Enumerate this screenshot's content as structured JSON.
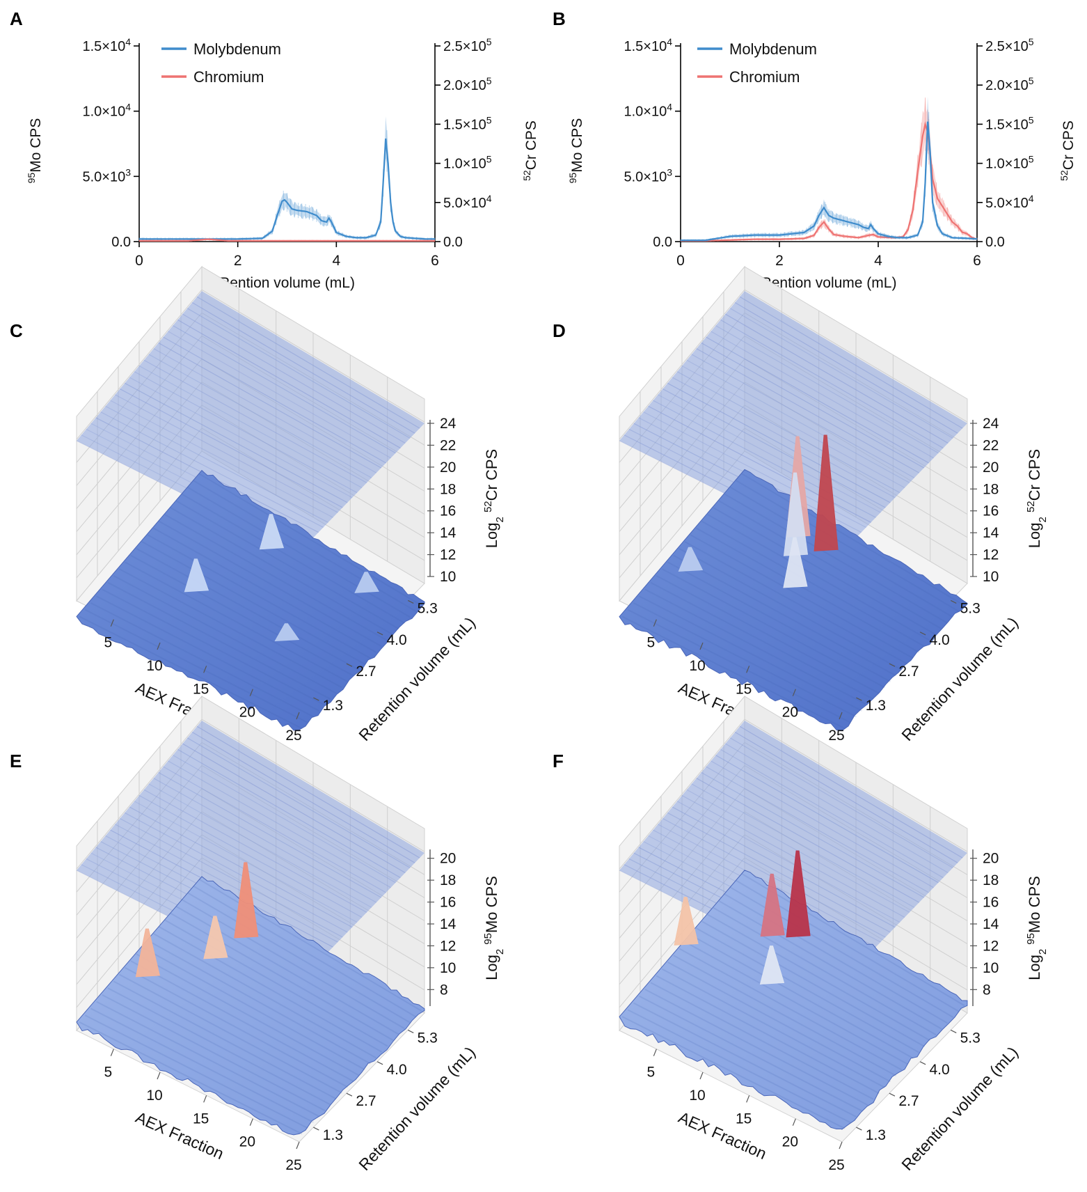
{
  "chart_data": [
    {
      "panel": "A",
      "type": "line",
      "xlabel": "Rention volume (mL)",
      "ylabel_left": {
        "sup": "95",
        "text": "Mo CPS"
      },
      "ylabel_right": {
        "sup": "52",
        "text": "Cr CPS"
      },
      "xlim": [
        0,
        6
      ],
      "ylim_left": [
        0,
        15000
      ],
      "ylim_right": [
        0,
        250000
      ],
      "x_ticks": [
        "0",
        "2",
        "4",
        "6"
      ],
      "left_ticks": [
        {
          "value": 0,
          "base": "0.0",
          "exp": ""
        },
        {
          "value": 5000,
          "base": "5.0×10",
          "exp": "3"
        },
        {
          "value": 10000,
          "base": "1.0×10",
          "exp": "4"
        },
        {
          "value": 15000,
          "base": "1.5×10",
          "exp": "4"
        }
      ],
      "right_ticks": [
        {
          "value": 0,
          "base": "0.0",
          "exp": ""
        },
        {
          "value": 50000,
          "base": "5.0×10",
          "exp": "4"
        },
        {
          "value": 100000,
          "base": "1.0×10",
          "exp": "5"
        },
        {
          "value": 150000,
          "base": "1.5×10",
          "exp": "5"
        },
        {
          "value": 200000,
          "base": "2.0×10",
          "exp": "5"
        },
        {
          "value": 250000,
          "base": "2.5×10",
          "exp": "5"
        }
      ],
      "legend": [
        {
          "name": "Molybdenum",
          "color": "#3f8ccc"
        },
        {
          "name": "Chromium",
          "color": "#ee7372"
        }
      ],
      "series": [
        {
          "name": "Molybdenum",
          "axis": "left",
          "color": "#3f8ccc",
          "x": [
            0,
            0.5,
            1,
            1.5,
            2,
            2.5,
            2.7,
            2.8,
            2.9,
            2.95,
            3.0,
            3.1,
            3.2,
            3.4,
            3.6,
            3.7,
            3.8,
            3.85,
            3.9,
            4.0,
            4.2,
            4.4,
            4.6,
            4.8,
            4.9,
            4.95,
            5.0,
            5.05,
            5.1,
            5.15,
            5.2,
            5.3,
            5.4,
            5.6,
            5.8,
            6.0
          ],
          "y": [
            200,
            200,
            200,
            200,
            200,
            250,
            800,
            2000,
            3100,
            3200,
            3000,
            2500,
            2400,
            2300,
            2000,
            1600,
            1500,
            1800,
            1500,
            700,
            400,
            300,
            300,
            500,
            1500,
            4500,
            7900,
            6000,
            3000,
            1500,
            800,
            400,
            300,
            250,
            200,
            200
          ]
        },
        {
          "name": "Chromium",
          "axis": "right",
          "color": "#ee7372",
          "x": [
            0,
            1.0,
            1.3,
            1.4,
            1.5,
            1.8,
            2.5,
            3.0,
            4.0,
            5.0,
            6.0
          ],
          "y": [
            1000,
            1000,
            2500,
            3000,
            2500,
            1000,
            1000,
            1000,
            1000,
            1000,
            1000
          ]
        }
      ]
    },
    {
      "panel": "B",
      "type": "line",
      "xlabel": "Rention volume (mL)",
      "ylabel_left": {
        "sup": "95",
        "text": "Mo CPS"
      },
      "ylabel_right": {
        "sup": "52",
        "text": "Cr CPS"
      },
      "xlim": [
        0,
        6
      ],
      "ylim_left": [
        0,
        15000
      ],
      "ylim_right": [
        0,
        250000
      ],
      "x_ticks": [
        "0",
        "2",
        "4",
        "6"
      ],
      "left_ticks": [
        {
          "value": 0,
          "base": "0.0",
          "exp": ""
        },
        {
          "value": 5000,
          "base": "5.0×10",
          "exp": "3"
        },
        {
          "value": 10000,
          "base": "1.0×10",
          "exp": "4"
        },
        {
          "value": 15000,
          "base": "1.5×10",
          "exp": "4"
        }
      ],
      "right_ticks": [
        {
          "value": 0,
          "base": "0.0",
          "exp": ""
        },
        {
          "value": 50000,
          "base": "5.0×10",
          "exp": "4"
        },
        {
          "value": 100000,
          "base": "1.0×10",
          "exp": "5"
        },
        {
          "value": 150000,
          "base": "1.5×10",
          "exp": "5"
        },
        {
          "value": 200000,
          "base": "2.0×10",
          "exp": "5"
        },
        {
          "value": 250000,
          "base": "2.5×10",
          "exp": "5"
        }
      ],
      "legend": [
        {
          "name": "Molybdenum",
          "color": "#3f8ccc"
        },
        {
          "name": "Chromium",
          "color": "#ee7372"
        }
      ],
      "series": [
        {
          "name": "Chromium",
          "axis": "right",
          "color": "#ee7372",
          "x": [
            0,
            0.5,
            1.0,
            1.5,
            2.0,
            2.5,
            2.7,
            2.8,
            2.9,
            3.0,
            3.1,
            3.3,
            3.6,
            3.8,
            3.9,
            4.0,
            4.3,
            4.5,
            4.6,
            4.7,
            4.8,
            4.9,
            4.95,
            5.0,
            5.05,
            5.1,
            5.2,
            5.3,
            5.4,
            5.5,
            5.6,
            5.7,
            5.8,
            5.9,
            6.0
          ],
          "y": [
            1000,
            1000,
            2000,
            3000,
            3000,
            4000,
            8000,
            18000,
            25000,
            16000,
            9000,
            7000,
            5000,
            8000,
            9000,
            6000,
            5000,
            6000,
            15000,
            40000,
            90000,
            135000,
            150000,
            140000,
            115000,
            80000,
            55000,
            45000,
            35000,
            25000,
            20000,
            12000,
            10000,
            5000,
            3000
          ]
        },
        {
          "name": "Molybdenum",
          "axis": "left",
          "color": "#3f8ccc",
          "x": [
            0,
            0.5,
            1.0,
            1.5,
            2.0,
            2.5,
            2.7,
            2.8,
            2.9,
            3.0,
            3.1,
            3.3,
            3.6,
            3.7,
            3.8,
            3.85,
            3.9,
            4.0,
            4.2,
            4.4,
            4.6,
            4.8,
            4.9,
            4.95,
            5.0,
            5.05,
            5.1,
            5.2,
            5.3,
            5.5,
            5.8,
            6.0
          ],
          "y": [
            100,
            100,
            400,
            500,
            500,
            700,
            1200,
            2000,
            2600,
            2000,
            1800,
            1600,
            1300,
            1100,
            1000,
            1300,
            1000,
            600,
            400,
            300,
            300,
            500,
            1500,
            4500,
            9200,
            7000,
            3000,
            1200,
            600,
            300,
            250,
            200
          ]
        }
      ]
    },
    {
      "panel": "C",
      "type": "surface3d",
      "xlabel": "AEX Fraction",
      "ylabel": "Retention volume (mL)",
      "zlabel": {
        "prefix": "Log",
        "sub": "2",
        "sup": "52",
        "text": "Cr CPS"
      },
      "x_ticks": [
        "5",
        "10",
        "15",
        "20",
        "25"
      ],
      "y_ticks": [
        "1.3",
        "2.7",
        "4.0",
        "5.3"
      ],
      "z_ticks": [
        "10",
        "12",
        "14",
        "16",
        "18",
        "20",
        "22",
        "24"
      ],
      "zlim": [
        10,
        24
      ],
      "base_level": 10.8,
      "peaks": [
        {
          "fraction": 8,
          "volume": 3.0,
          "height": 13.4,
          "color": "#c6d7f5"
        },
        {
          "fraction": 11,
          "volume": 5.0,
          "height": 13.6,
          "color": "#c9d9f4"
        },
        {
          "fraction": 18,
          "volume": 2.9,
          "height": 12.0,
          "color": "#b8cbef"
        },
        {
          "fraction": 21,
          "volume": 5.1,
          "height": 12.3,
          "color": "#b8cbef"
        }
      ]
    },
    {
      "panel": "D",
      "type": "surface3d",
      "xlabel": "AEX Fraction",
      "ylabel": "Retention volume (mL)",
      "zlabel": {
        "prefix": "Log",
        "sub": "2",
        "sup": "52",
        "text": "Cr CPS"
      },
      "x_ticks": [
        "5",
        "10",
        "15",
        "20",
        "25"
      ],
      "y_ticks": [
        "1.3",
        "2.7",
        "4.0",
        "5.3"
      ],
      "z_ticks": [
        "10",
        "12",
        "14",
        "16",
        "18",
        "20",
        "22",
        "24"
      ],
      "zlim": [
        10,
        24
      ],
      "base_level": 10.8,
      "peaks": [
        {
          "fraction": 3,
          "volume": 2.9,
          "height": 12.6,
          "color": "#b9cbef"
        },
        {
          "fraction": 9,
          "volume": 5.1,
          "height": 19.6,
          "color": "#e5a8a6"
        },
        {
          "fraction": 10,
          "volume": 4.6,
          "height": 18.0,
          "color": "#d3dcf0"
        },
        {
          "fraction": 12,
          "volume": 5.1,
          "height": 21.0,
          "color": "#c0474f"
        },
        {
          "fraction": 12,
          "volume": 3.8,
          "height": 15.0,
          "color": "#dde4f2"
        }
      ]
    },
    {
      "panel": "E",
      "type": "surface3d",
      "xlabel": "AEX Fraction",
      "ylabel": "Retention volume (mL)",
      "zlabel": {
        "prefix": "Log",
        "sub": "2",
        "sup": "95",
        "text": "Mo CPS"
      },
      "x_ticks": [
        "5",
        "10",
        "15",
        "20",
        "25"
      ],
      "y_ticks": [
        "1.3",
        "2.7",
        "4.0",
        "5.3"
      ],
      "z_ticks": [
        "8",
        "10",
        "12",
        "14",
        "16",
        "18",
        "20"
      ],
      "zlim": [
        7,
        21
      ],
      "base_level": 10.0,
      "peaks": [
        {
          "fraction": 3,
          "volume": 2.9,
          "height": 14.0,
          "color": "#f2b49a"
        },
        {
          "fraction": 8,
          "volume": 5.1,
          "height": 16.5,
          "color": "#ef8f78"
        },
        {
          "fraction": 7,
          "volume": 4.2,
          "height": 13.5,
          "color": "#f4c7ae"
        }
      ]
    },
    {
      "panel": "F",
      "type": "surface3d",
      "xlabel": "AEX Fraction",
      "ylabel": "Retention volume (mL)",
      "zlabel": {
        "prefix": "Log",
        "sub": "2",
        "sup": "95",
        "text": "Mo CPS"
      },
      "x_ticks": [
        "5",
        "10",
        "15",
        "20",
        "25"
      ],
      "y_ticks": [
        "1.3",
        "2.7",
        "4.0",
        "5.3"
      ],
      "z_ticks": [
        "8",
        "10",
        "12",
        "14",
        "16",
        "18",
        "20"
      ],
      "zlim": [
        7,
        21
      ],
      "base_level": 10.5,
      "peaks": [
        {
          "fraction": 9,
          "volume": 5.1,
          "height": 18.0,
          "color": "#b8344a"
        },
        {
          "fraction": 7,
          "volume": 4.8,
          "height": 15.8,
          "color": "#d57483"
        },
        {
          "fraction": 10,
          "volume": 3.6,
          "height": 13.6,
          "color": "#dfe6f3"
        },
        {
          "fraction": 1,
          "volume": 3.5,
          "height": 14.5,
          "color": "#f3c3a8"
        }
      ]
    }
  ]
}
